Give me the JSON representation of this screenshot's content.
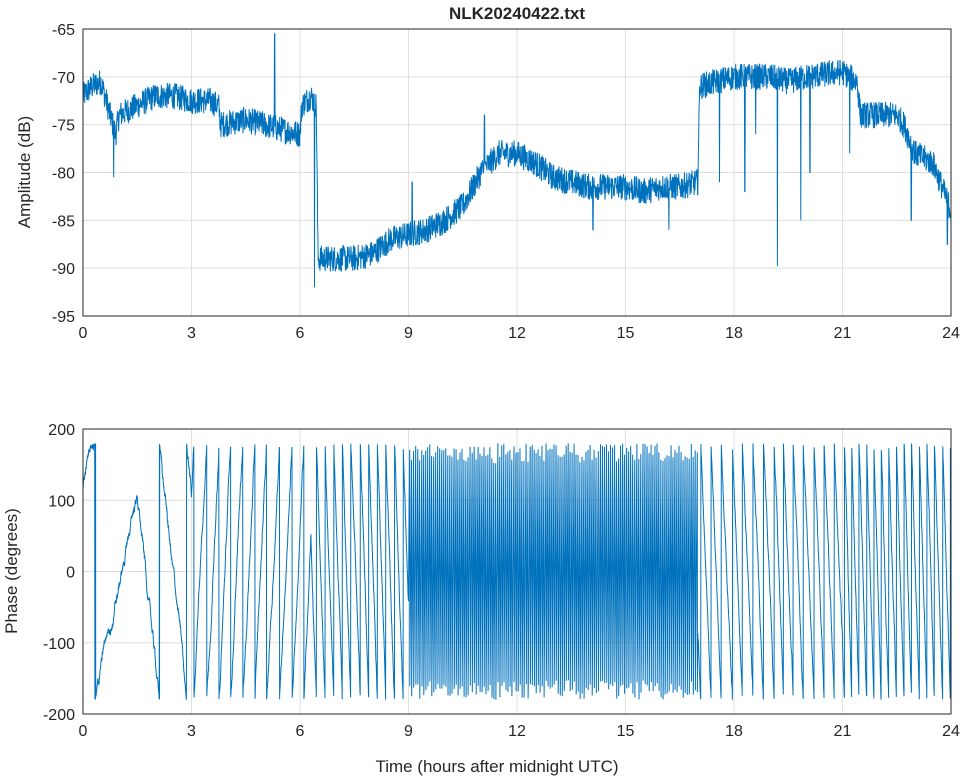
{
  "chart_data": [
    {
      "type": "line",
      "title": "NLK20240422.txt",
      "xlabel": "",
      "ylabel": "Amplitude (dB)",
      "xlim": [
        0,
        24
      ],
      "ylim": [
        -95,
        -65
      ],
      "xticks": [
        0,
        3,
        6,
        9,
        12,
        15,
        18,
        21,
        24
      ],
      "yticks": [
        -65,
        -70,
        -75,
        -80,
        -85,
        -90,
        -95
      ],
      "grid": true,
      "color": "#0072BD",
      "series": [
        {
          "name": "Amplitude",
          "x": [
            0,
            0.25,
            0.5,
            0.75,
            0.9,
            1,
            1.5,
            2,
            2.5,
            3,
            3.5,
            3.75,
            3.8,
            4.5,
            5,
            5.5,
            6,
            6.05,
            6.3,
            6.45,
            6.5,
            7,
            7.5,
            8,
            8.5,
            9,
            9.5,
            10,
            10.5,
            11,
            11.5,
            12,
            12.5,
            13,
            13.5,
            14,
            15,
            15.5,
            16,
            16.5,
            17,
            17.05,
            18,
            19,
            19.5,
            20,
            21,
            21.4,
            21.5,
            22,
            22.5,
            22.7,
            23,
            23.5,
            24
          ],
          "values": [
            -72,
            -71,
            -70.5,
            -74,
            -76,
            -74,
            -73,
            -72,
            -72,
            -72.5,
            -72.5,
            -73,
            -75,
            -74.5,
            -75,
            -75.5,
            -76,
            -73,
            -72,
            -73,
            -89,
            -89,
            -89,
            -88.5,
            -87,
            -86.5,
            -86,
            -85,
            -83.5,
            -80,
            -78,
            -78,
            -79,
            -80.5,
            -81,
            -81.5,
            -81.5,
            -82,
            -81.5,
            -81.5,
            -81,
            -71,
            -70,
            -70,
            -70.5,
            -70,
            -69.5,
            -70.5,
            -74,
            -74,
            -74,
            -75,
            -78,
            -79,
            -84
          ],
          "noise_db": 1.4,
          "spikes": [
            [
              5.3,
              -65.5
            ],
            [
              0.85,
              -80.5
            ],
            [
              6.4,
              -92
            ],
            [
              17.6,
              -81
            ],
            [
              18.3,
              -82
            ],
            [
              19.2,
              -89.8
            ],
            [
              19.85,
              -85
            ],
            [
              20.1,
              -80
            ],
            [
              18.6,
              -76
            ],
            [
              21.2,
              -78
            ],
            [
              22.9,
              -85
            ],
            [
              23.9,
              -87.5
            ],
            [
              9.1,
              -81
            ],
            [
              11.1,
              -74
            ],
            [
              14.1,
              -86
            ],
            [
              16.2,
              -86
            ]
          ]
        }
      ]
    },
    {
      "type": "line",
      "title": "",
      "xlabel": "Time (hours after midnight UTC)",
      "ylabel": "Phase (degrees)",
      "xlim": [
        0,
        24
      ],
      "ylim": [
        -200,
        200
      ],
      "xticks": [
        0,
        3,
        6,
        9,
        12,
        15,
        18,
        21,
        24
      ],
      "yticks": [
        200,
        100,
        0,
        -100,
        -200
      ],
      "grid": true,
      "color": "#0072BD",
      "wrap_range": [
        -180,
        180
      ],
      "drift_segments": [
        {
          "from": 0,
          "to": 1.5,
          "rate_deg_per_hour": 250,
          "start_phase": 120
        },
        {
          "from": 1.5,
          "to": 3,
          "rate_deg_per_hour": -500
        },
        {
          "from": 3,
          "to": 6.3,
          "rate_deg_per_hour": 1100
        },
        {
          "from": 6.3,
          "to": 9,
          "rate_deg_per_hour": -1500
        },
        {
          "from": 9,
          "to": 17,
          "rate_deg_per_hour": 6500
        },
        {
          "from": 17,
          "to": 21,
          "rate_deg_per_hour": -1300
        },
        {
          "from": 21,
          "to": 24,
          "rate_deg_per_hour": -1700
        }
      ]
    }
  ]
}
